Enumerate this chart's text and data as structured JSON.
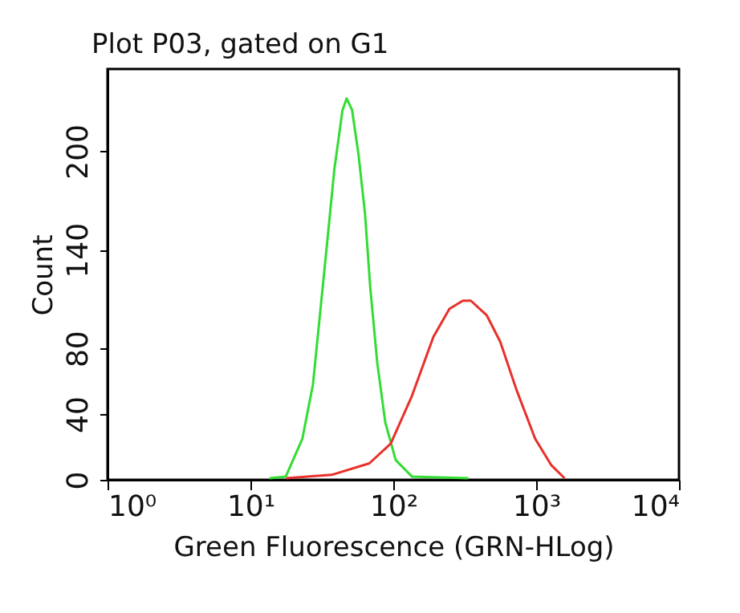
{
  "chart_data": {
    "type": "line",
    "title": "Plot P03, gated on G1",
    "xlabel": "Green Fluorescence (GRN-HLog)",
    "ylabel": "Count",
    "log": "x",
    "grid": false,
    "legend": false,
    "marker": "none",
    "line_style": "solid",
    "xlim": [
      1,
      10000
    ],
    "xticks": [
      {
        "value": 1,
        "label": "10⁰"
      },
      {
        "value": 10,
        "label": "10¹"
      },
      {
        "value": 100,
        "label": "10²"
      },
      {
        "value": 1000,
        "label": "10³"
      },
      {
        "value": 10000,
        "label": "10⁴"
      }
    ],
    "ylim": [
      0,
      250
    ],
    "yticks": [
      0,
      40,
      80,
      140,
      200
    ],
    "series": [
      {
        "color": "#33dd33",
        "x": [
          13.6,
          17.7,
          23.1,
          27.4,
          31.2,
          34.6,
          38.7,
          44.1,
          47.2,
          51.5,
          57.1,
          63.4,
          69,
          77.3,
          87.9,
          104,
          135,
          335
        ],
        "values": [
          1,
          2,
          25,
          58,
          107,
          146,
          189,
          225,
          232,
          225,
          198,
          162,
          117,
          71,
          35,
          12,
          2,
          1
        ]
      },
      {
        "color": "#e8302a",
        "x": [
          17.8,
          37,
          68,
          96,
          135,
          191,
          247,
          307,
          349,
          452,
          561,
          727,
          984,
          1274,
          1581
        ],
        "values": [
          1,
          3,
          10,
          22,
          51,
          87,
          104,
          109,
          109,
          100,
          84,
          55,
          25,
          9,
          1
        ]
      }
    ]
  }
}
